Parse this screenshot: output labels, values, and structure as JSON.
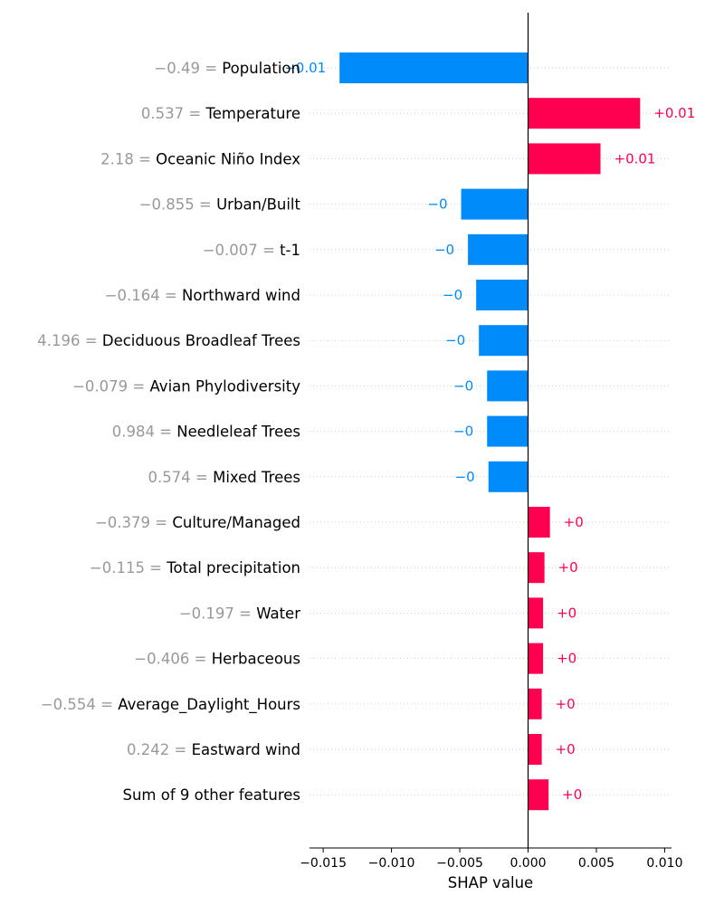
{
  "chart_data": {
    "type": "bar",
    "title": "",
    "xlabel": "SHAP value",
    "ylabel": "",
    "xlim": [
      -0.016,
      0.0105
    ],
    "xticks": [
      -0.015,
      -0.01,
      -0.005,
      0.0,
      0.005,
      0.01
    ],
    "xtick_labels": [
      "−0.015",
      "−0.010",
      "−0.005",
      "0.000",
      "0.005",
      "0.010"
    ],
    "grid": "dotted horizontal guide per row",
    "colors": {
      "positive": "#ff0051",
      "negative": "#008bfb",
      "value_text": "#999999",
      "feature_text": "#000000"
    },
    "features": [
      {
        "value_text": "−0.49",
        "name": "Population",
        "shap": -0.0138,
        "label": "−0.01"
      },
      {
        "value_text": "0.537",
        "name": "Temperature",
        "shap": 0.0082,
        "label": "+0.01"
      },
      {
        "value_text": "2.18",
        "name": "Oceanic Niño Index",
        "shap": 0.0053,
        "label": "+0.01"
      },
      {
        "value_text": "−0.855",
        "name": "Urban/Built",
        "shap": -0.0049,
        "label": "−0"
      },
      {
        "value_text": "−0.007",
        "name": "t-1",
        "shap": -0.0044,
        "label": "−0"
      },
      {
        "value_text": "−0.164",
        "name": "Northward wind",
        "shap": -0.0038,
        "label": "−0"
      },
      {
        "value_text": "4.196",
        "name": "Deciduous Broadleaf Trees",
        "shap": -0.0036,
        "label": "−0"
      },
      {
        "value_text": "−0.079",
        "name": "Avian Phylodiversity",
        "shap": -0.003,
        "label": "−0"
      },
      {
        "value_text": "0.984",
        "name": "Needleleaf Trees",
        "shap": -0.003,
        "label": "−0"
      },
      {
        "value_text": "0.574",
        "name": "Mixed Trees",
        "shap": -0.0029,
        "label": "−0"
      },
      {
        "value_text": "−0.379",
        "name": "Culture/Managed",
        "shap": 0.0016,
        "label": "+0"
      },
      {
        "value_text": "−0.115",
        "name": "Total precipitation",
        "shap": 0.0012,
        "label": "+0"
      },
      {
        "value_text": "−0.197",
        "name": "Water",
        "shap": 0.0011,
        "label": "+0"
      },
      {
        "value_text": "−0.406",
        "name": "Herbaceous",
        "shap": 0.0011,
        "label": "+0"
      },
      {
        "value_text": "−0.554",
        "name": "Average_Daylight_Hours",
        "shap": 0.001,
        "label": "+0"
      },
      {
        "value_text": "0.242",
        "name": "Eastward wind",
        "shap": 0.001,
        "label": "+0"
      },
      {
        "value_text": "",
        "name": "Sum of 9 other features",
        "shap": 0.0015,
        "label": "+0"
      }
    ]
  }
}
